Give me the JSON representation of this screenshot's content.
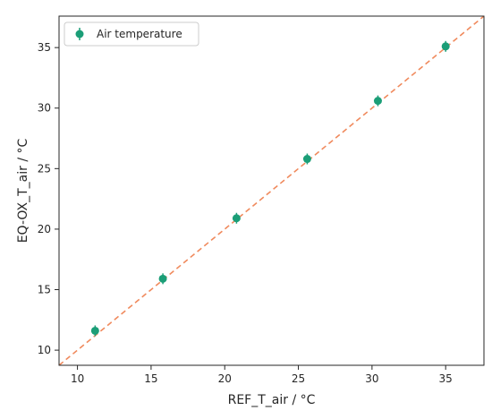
{
  "colors": {
    "series": "#1b9e77",
    "reference_line": "#f08a5d",
    "axes": "#262626",
    "legend_border": "#cccccc"
  },
  "chart_data": {
    "type": "scatter",
    "xlabel": "REF_T_air / °C",
    "ylabel": "EQ-OX_T_air / °C",
    "xlim": [
      8.75,
      37.6
    ],
    "ylim": [
      8.75,
      37.6
    ],
    "xticks": [
      10,
      15,
      20,
      25,
      30,
      35
    ],
    "yticks": [
      10,
      15,
      20,
      25,
      30,
      35
    ],
    "grid": false,
    "legend_position": "top-left",
    "series": [
      {
        "name": "Air temperature",
        "marker": "circle with error bars",
        "points": [
          {
            "x": 11.2,
            "y": 11.6
          },
          {
            "x": 15.8,
            "y": 15.9
          },
          {
            "x": 20.8,
            "y": 20.9
          },
          {
            "x": 25.6,
            "y": 25.8
          },
          {
            "x": 30.4,
            "y": 30.6
          },
          {
            "x": 35.0,
            "y": 35.1
          }
        ]
      }
    ],
    "reference_line": {
      "style": "dashed",
      "x": [
        8.75,
        37.6
      ],
      "y": [
        8.75,
        37.6
      ]
    }
  }
}
